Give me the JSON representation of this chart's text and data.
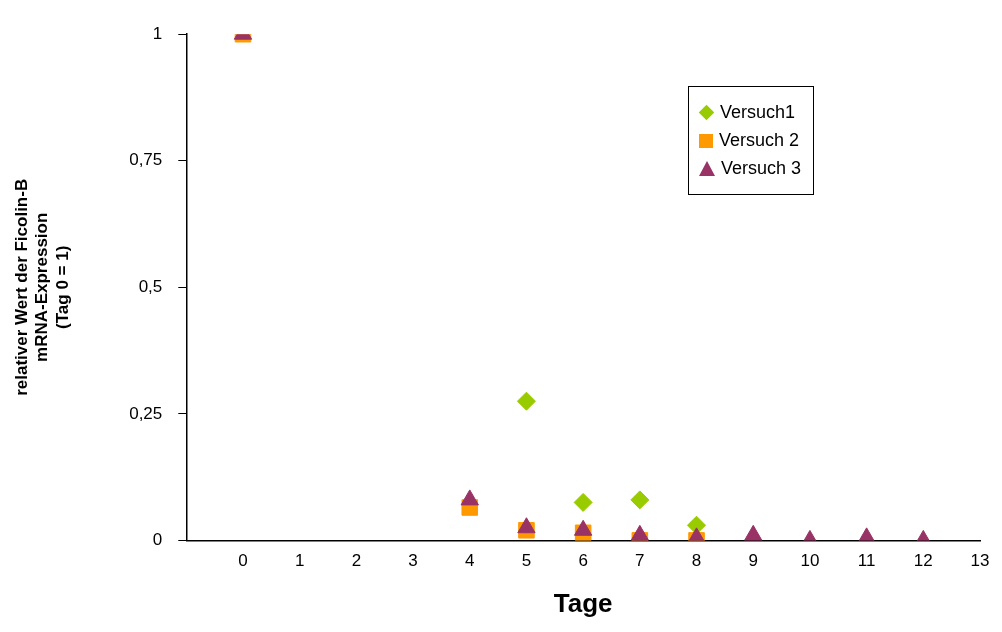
{
  "chart_data": {
    "type": "scatter",
    "xlabel": "Tage",
    "ylabel": "relativer Wert der Ficolin-B\nmRNA-Expression\n(Tag 0 = 1)",
    "xlim": [
      -1,
      13
    ],
    "xticks": [
      0,
      1,
      2,
      3,
      4,
      5,
      6,
      7,
      8,
      9,
      10,
      11,
      12,
      13
    ],
    "ylim": [
      0,
      1
    ],
    "yticks": [
      0,
      {
        "value": 0.25,
        "label": "0,25"
      },
      {
        "value": 0.5,
        "label": "0,5"
      },
      {
        "value": 0.75,
        "label": "0,75"
      },
      1
    ],
    "grid": false,
    "legend": "top right",
    "series": [
      {
        "name": "Versuch1",
        "color": "#99cc00",
        "marker": "diamond",
        "x": [
          5,
          6,
          7,
          8
        ],
        "values": [
          0.275,
          0.075,
          0.08,
          0.03
        ]
      },
      {
        "name": "Versuch 2",
        "color": "#ff9900",
        "marker": "square",
        "x": [
          0,
          4,
          5,
          6,
          7,
          8
        ],
        "values": [
          1,
          0.065,
          0.02,
          0.015,
          0,
          0
        ]
      },
      {
        "name": "Versuch 3",
        "color": "#993366",
        "marker": "triangle",
        "x": [
          0,
          4,
          5,
          6,
          7,
          8,
          9,
          10,
          11,
          12
        ],
        "values": [
          1,
          0.08,
          0.025,
          0.02,
          0.01,
          0.005,
          0.01,
          0,
          0.005,
          0
        ]
      }
    ]
  }
}
